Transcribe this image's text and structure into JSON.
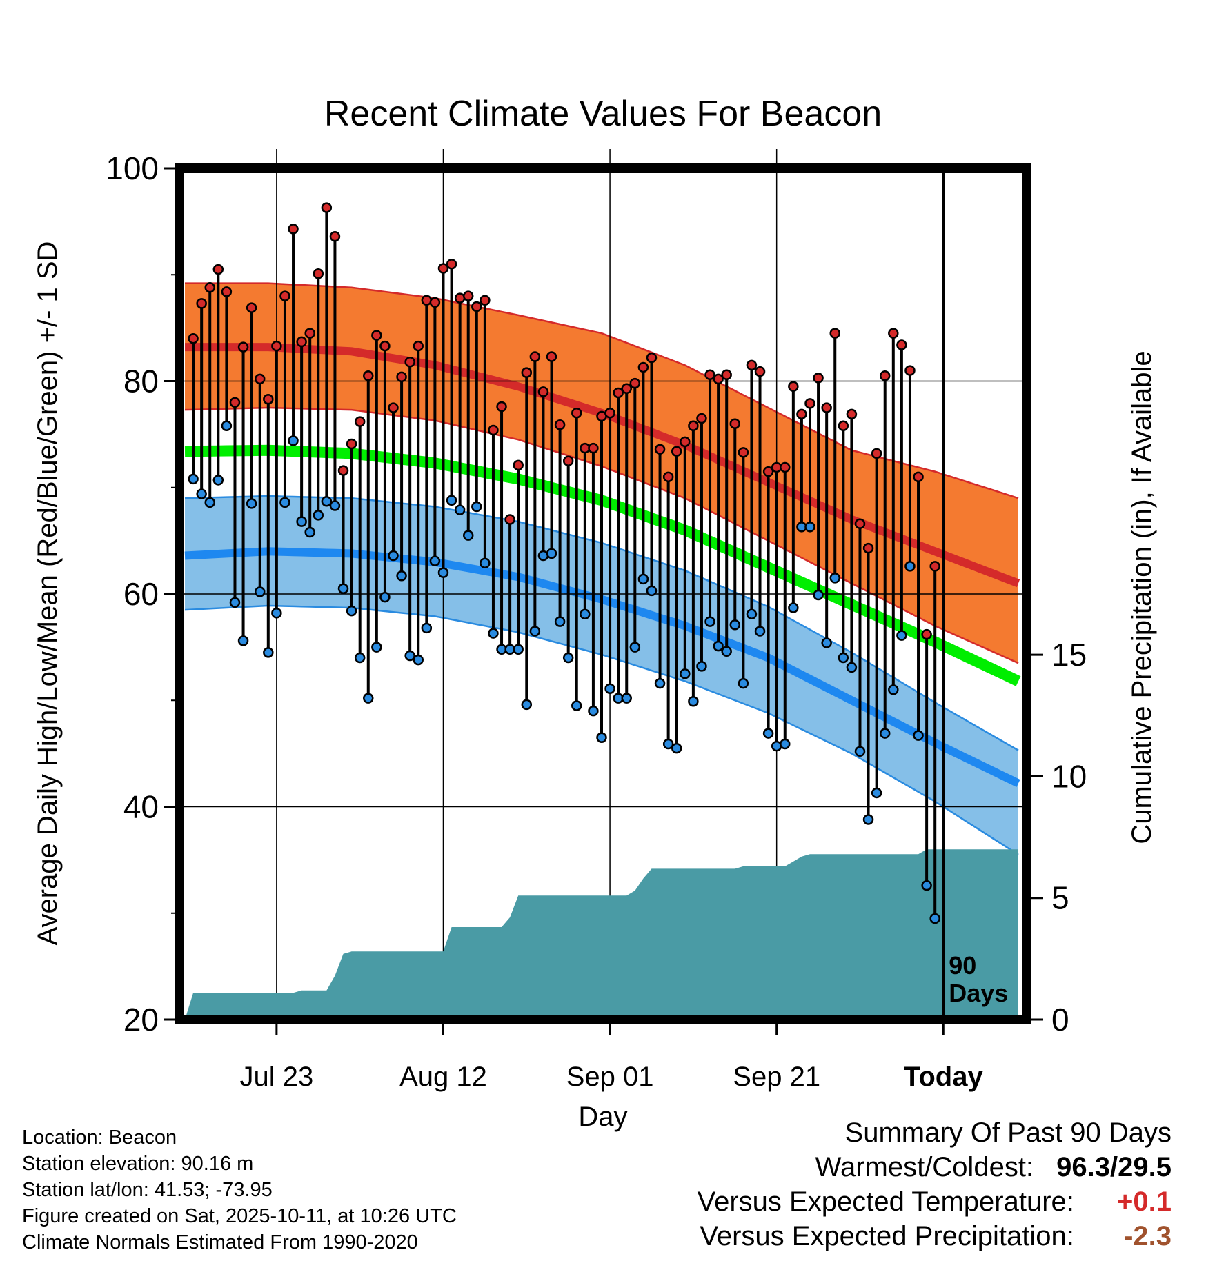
{
  "chart_data": {
    "type": "line",
    "title": "Recent Climate Values For Beacon",
    "xlabel": "Day",
    "ylabel": "Average Daily High/Low/Mean (Red/Blue/Green) +/- 1 SD",
    "y2label": "Cumulative Precipitation (in), If Available",
    "ylim": [
      20,
      100
    ],
    "y2lim": [
      0,
      35
    ],
    "y_ticks": [
      "20",
      "40",
      "60",
      "80",
      "100"
    ],
    "y2_ticks": [
      "0",
      "5",
      "10",
      "15"
    ],
    "x_ticks": [
      {
        "label": "Jul 23",
        "day": 11
      },
      {
        "label": "Aug 12",
        "day": 31
      },
      {
        "label": "Sep 01",
        "day": 51
      },
      {
        "label": "Sep 21",
        "day": 71
      },
      {
        "label": "Today",
        "day": 91
      }
    ],
    "x_range": [
      0,
      100
    ],
    "today_marker": {
      "day": 91,
      "label_line1": "90",
      "label_line2": "Days"
    },
    "normals": {
      "days": [
        0,
        10,
        20,
        30,
        40,
        50,
        60,
        70,
        80,
        90,
        100
      ],
      "high_mean": [
        83.2,
        83.2,
        82.8,
        81.5,
        79.5,
        77,
        74,
        70.5,
        67,
        64,
        61
      ],
      "high_upper": [
        89.2,
        89.2,
        88.8,
        87.8,
        86.2,
        84.5,
        81.5,
        77.5,
        73.5,
        71.5,
        69
      ],
      "high_lower": [
        77.3,
        77.5,
        77.3,
        76.3,
        74.5,
        72,
        69,
        65,
        61,
        57,
        53.5
      ],
      "mean_temp": [
        73.4,
        73.5,
        73.2,
        72.3,
        70.8,
        68.8,
        66,
        62.5,
        59,
        55.5,
        51.8
      ],
      "low_mean": [
        63.6,
        64,
        63.8,
        63,
        61.6,
        59.5,
        57,
        54,
        50,
        46,
        42.2
      ],
      "low_upper": [
        69,
        69.2,
        69,
        68.2,
        66.8,
        64.8,
        62.2,
        58.8,
        54.5,
        49.8,
        45.3
      ],
      "low_lower": [
        58.5,
        58.9,
        58.7,
        57.9,
        56.4,
        54.3,
        51.8,
        48.8,
        45,
        40.5,
        35.5
      ]
    },
    "series": [
      {
        "name": "Daily High",
        "color": "#d42a2a",
        "values": [
          84,
          87.3,
          88.8,
          90.5,
          88.4,
          78,
          83.2,
          86.9,
          80.2,
          78.3,
          83.3,
          88,
          94.3,
          83.7,
          84.5,
          90.1,
          96.3,
          93.6,
          71.6,
          74.1,
          76.2,
          80.5,
          84.3,
          83.3,
          77.5,
          80.4,
          81.8,
          83.3,
          87.6,
          87.4,
          90.6,
          91,
          87.8,
          88,
          87,
          87.6,
          75.4,
          77.6,
          67,
          72.1,
          80.8,
          82.3,
          79,
          82.3,
          75.9,
          72.5,
          77,
          73.7,
          73.7,
          76.7,
          77,
          78.9,
          79.3,
          79.8,
          81.3,
          82.2,
          73.6,
          71,
          73.4,
          74.3,
          75.8,
          76.5,
          80.6,
          80.2,
          80.6,
          76,
          73.3,
          81.5,
          80.9,
          71.5,
          71.9,
          71.9,
          79.5,
          76.9,
          77.9,
          80.3,
          77.5,
          84.5,
          75.8,
          76.9,
          66.6,
          64.3,
          73.2,
          80.5,
          84.5,
          83.4,
          81,
          71,
          56.2,
          62.6
        ]
      },
      {
        "name": "Daily Low",
        "color": "#2a8be0",
        "values": [
          70.8,
          69.4,
          68.6,
          70.7,
          75.8,
          59.2,
          55.6,
          68.5,
          60.2,
          54.5,
          58.2,
          68.6,
          74.4,
          66.8,
          65.8,
          67.4,
          68.7,
          68.3,
          60.5,
          58.4,
          54,
          50.2,
          55,
          59.7,
          63.6,
          61.7,
          54.2,
          53.8,
          56.8,
          63.1,
          62,
          68.8,
          67.9,
          65.5,
          68.2,
          62.9,
          56.3,
          54.8,
          54.8,
          54.8,
          49.6,
          56.5,
          63.6,
          63.8,
          57.4,
          54,
          49.5,
          58.1,
          49,
          46.5,
          51.1,
          50.2,
          50.2,
          55,
          61.4,
          60.3,
          51.6,
          45.9,
          45.5,
          52.5,
          49.9,
          53.2,
          57.4,
          55.1,
          54.6,
          57.1,
          51.6,
          58.1,
          56.5,
          46.9,
          45.7,
          45.9,
          58.7,
          66.3,
          66.3,
          59.9,
          55.4,
          61.5,
          54,
          53.1,
          45.2,
          38.8,
          41.3,
          46.9,
          51,
          56.1,
          62.6,
          46.7,
          32.6,
          29.5
        ]
      },
      {
        "name": "Cumulative Precipitation",
        "color": "#4a9ba5",
        "values": [
          0,
          1.1,
          1.1,
          1.1,
          1.1,
          1.1,
          1.1,
          1.1,
          1.1,
          1.1,
          1.1,
          1.1,
          1.1,
          1.1,
          1.2,
          1.2,
          1.2,
          1.2,
          1.8,
          2.7,
          2.8,
          2.8,
          2.8,
          2.8,
          2.8,
          2.8,
          2.8,
          2.8,
          2.8,
          2.8,
          2.8,
          2.8,
          3.8,
          3.8,
          3.8,
          3.8,
          3.8,
          3.8,
          3.8,
          4.2,
          5.1,
          5.1,
          5.1,
          5.1,
          5.1,
          5.1,
          5.1,
          5.1,
          5.1,
          5.1,
          5.1,
          5.1,
          5.1,
          5.1,
          5.3,
          5.8,
          6.2,
          6.2,
          6.2,
          6.2,
          6.2,
          6.2,
          6.2,
          6.2,
          6.2,
          6.2,
          6.2,
          6.3,
          6.3,
          6.3,
          6.3,
          6.3,
          6.3,
          6.5,
          6.7,
          6.8,
          6.8,
          6.8,
          6.8,
          6.8,
          6.8,
          6.8,
          6.8,
          6.8,
          6.8,
          6.8,
          6.8,
          6.8,
          6.8,
          7.0,
          7.0,
          7.0,
          7.0,
          7.0,
          7.0,
          7.0,
          7.0,
          7.0,
          7.0,
          7.0
        ]
      }
    ]
  },
  "info": {
    "location": "Location: Beacon",
    "elevation": "Station elevation: 90.16 m",
    "latlon": "Station lat/lon: 41.53; -73.95",
    "created": "Figure created on Sat, 2025-10-11, at 10:26 UTC",
    "normals": "Climate Normals Estimated From 1990-2020"
  },
  "summary": {
    "heading": "Summary Of Past 90 Days",
    "warmest_label": "Warmest/Coldest:",
    "warmest_value": "96.3/29.5",
    "temp_label": "Versus Expected Temperature:",
    "temp_value": "+0.1",
    "precip_label": "Versus Expected Precipitation:",
    "precip_value": "-2.3",
    "temp_color": "#d42a2a",
    "precip_color": "#a0522d"
  }
}
